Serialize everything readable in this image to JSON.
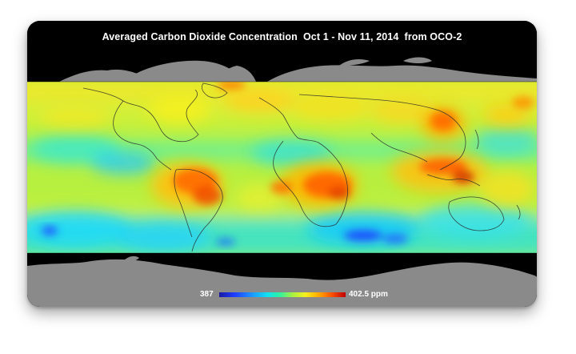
{
  "title": "Averaged Carbon Dioxide Concentration  Oct 1 - Nov 11, 2014  from OCO-2",
  "legend": {
    "min_label": "387",
    "max_label": "402.5 ppm",
    "min_value": 387,
    "max_value": 402.5
  },
  "colors": {
    "background": "#000000",
    "land_outside_band": "#8a8a8a",
    "band_base": "#b8f040",
    "scale": [
      "#1a1aa0",
      "#1f3cff",
      "#1e90ff",
      "#10e0f0",
      "#30f0a0",
      "#a8f040",
      "#f4f020",
      "#ffb000",
      "#ff5a00",
      "#c00000"
    ]
  }
}
